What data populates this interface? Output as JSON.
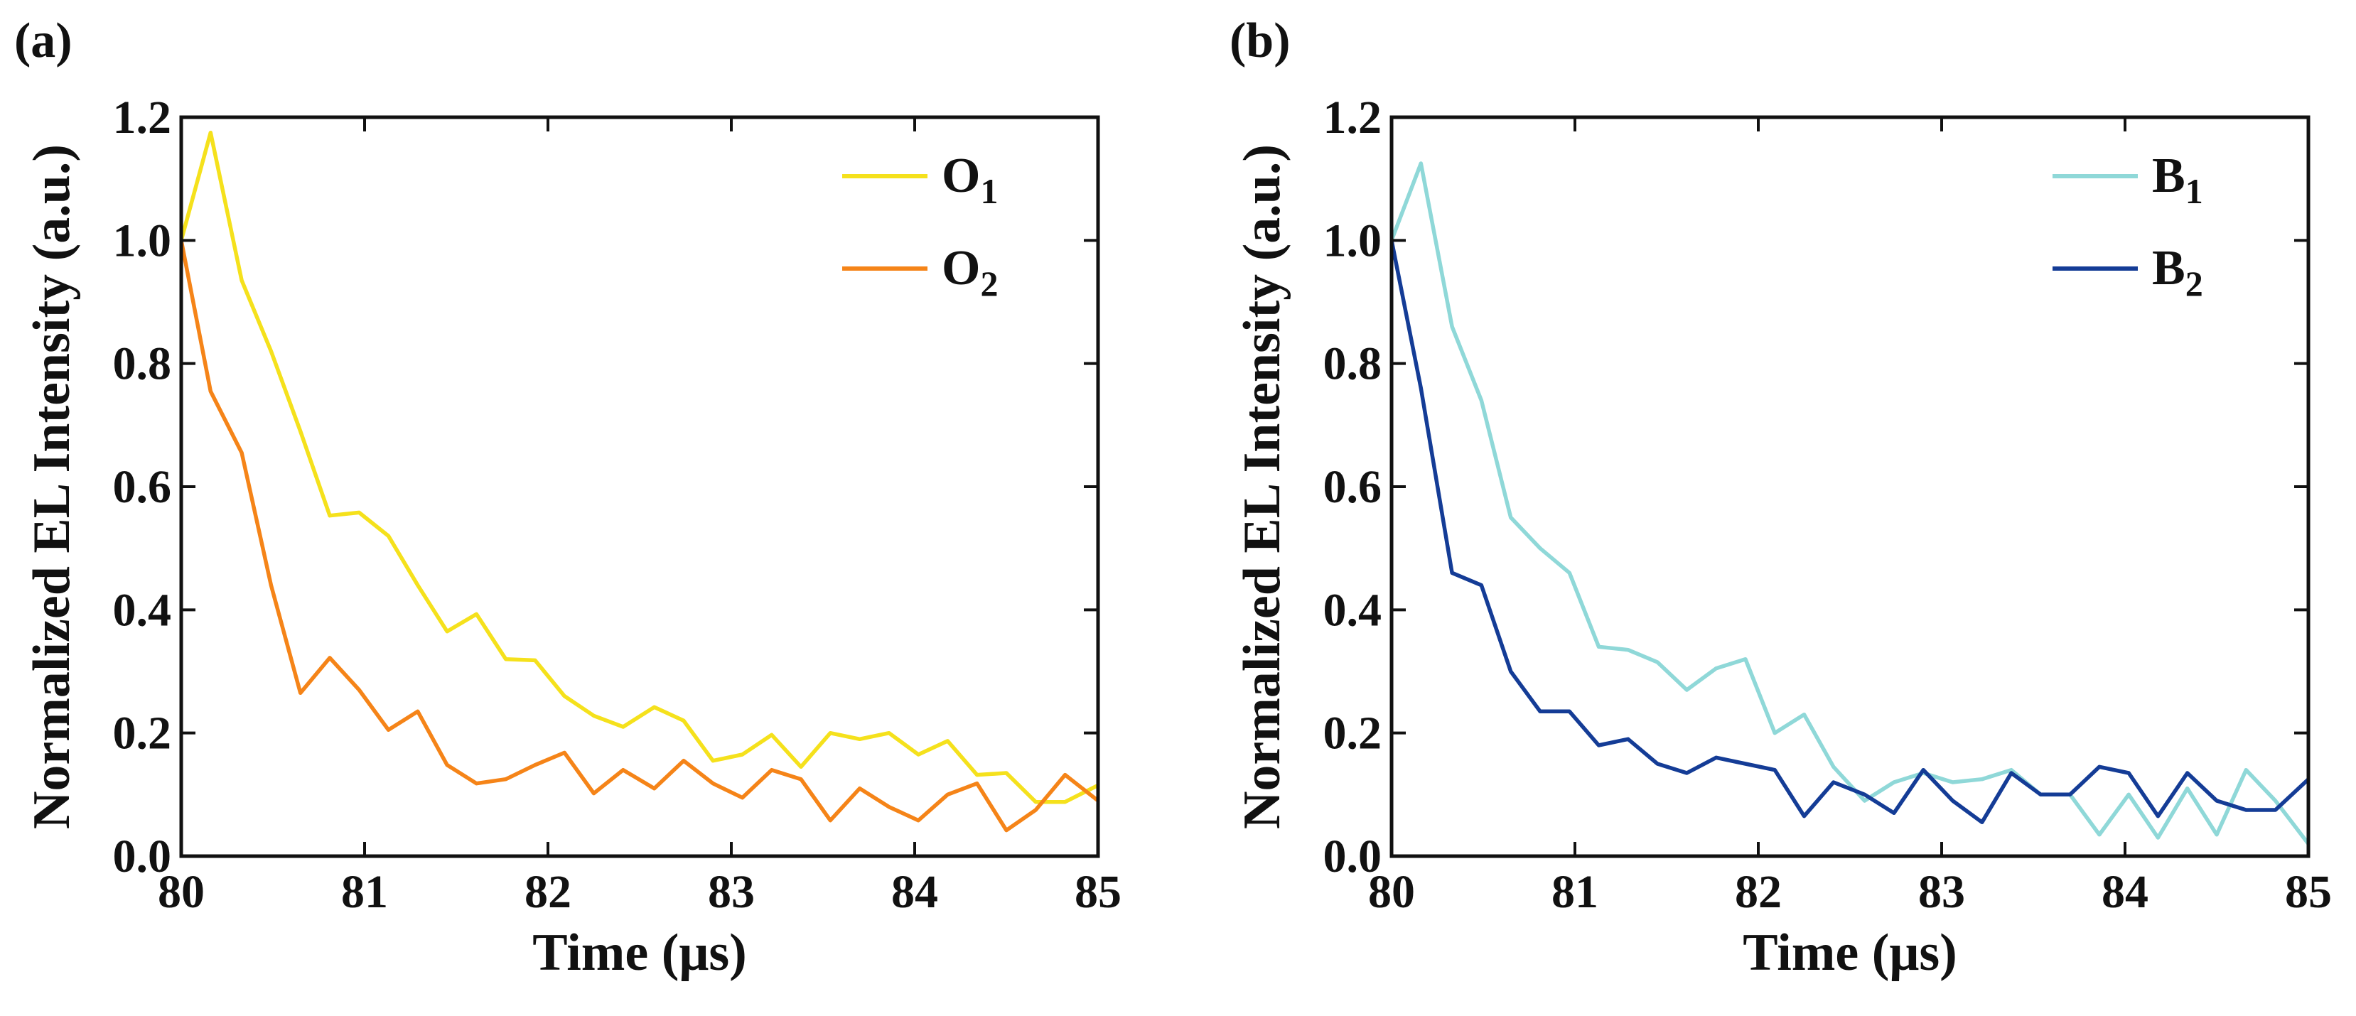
{
  "chart_data": [
    {
      "panel_label": "(a)",
      "type": "line",
      "xlabel": "Time (μs)",
      "ylabel": "Normalized EL Intensity (a.u.)",
      "xlim": [
        80,
        85
      ],
      "ylim": [
        0,
        1.2
      ],
      "xticks": [
        "80",
        "81",
        "82",
        "83",
        "84",
        "85"
      ],
      "yticks": [
        "0.0",
        "0.2",
        "0.4",
        "0.6",
        "0.8",
        "1.0",
        "1.2"
      ],
      "legend_position": "top-right",
      "series": [
        {
          "name": "O",
          "subscript": "1",
          "color": "#f5e11c",
          "x": [
            80.0,
            80.16,
            80.33,
            80.49,
            80.65,
            80.81,
            80.97,
            81.13,
            81.29,
            81.45,
            81.61,
            81.77,
            81.93,
            82.09,
            82.25,
            82.41,
            82.58,
            82.74,
            82.9,
            83.06,
            83.22,
            83.38,
            83.54,
            83.7,
            83.86,
            84.02,
            84.18,
            84.34,
            84.5,
            84.66,
            84.82,
            85.0
          ],
          "y": [
            1.0,
            1.175,
            0.935,
            0.82,
            0.69,
            0.553,
            0.558,
            0.52,
            0.44,
            0.365,
            0.393,
            0.32,
            0.318,
            0.26,
            0.228,
            0.21,
            0.242,
            0.22,
            0.155,
            0.165,
            0.197,
            0.145,
            0.2,
            0.19,
            0.2,
            0.165,
            0.187,
            0.132,
            0.135,
            0.088,
            0.088,
            0.115
          ]
        },
        {
          "name": "O",
          "subscript": "2",
          "color": "#f58418",
          "x": [
            80.0,
            80.16,
            80.33,
            80.49,
            80.65,
            80.81,
            80.97,
            81.13,
            81.29,
            81.45,
            81.61,
            81.77,
            81.93,
            82.09,
            82.25,
            82.41,
            82.58,
            82.74,
            82.9,
            83.06,
            83.22,
            83.38,
            83.54,
            83.7,
            83.86,
            84.02,
            84.18,
            84.34,
            84.5,
            84.66,
            84.82,
            85.0
          ],
          "y": [
            1.0,
            0.755,
            0.655,
            0.44,
            0.265,
            0.322,
            0.27,
            0.205,
            0.235,
            0.148,
            0.118,
            0.125,
            0.148,
            0.168,
            0.102,
            0.14,
            0.11,
            0.155,
            0.118,
            0.095,
            0.14,
            0.125,
            0.058,
            0.11,
            0.08,
            0.058,
            0.1,
            0.118,
            0.042,
            0.075,
            0.132,
            0.09
          ]
        }
      ]
    },
    {
      "panel_label": "(b)",
      "type": "line",
      "xlabel": "Time (μs)",
      "ylabel": "Normalized EL Intensity (a.u.)",
      "xlim": [
        80,
        85
      ],
      "ylim": [
        0,
        1.2
      ],
      "xticks": [
        "80",
        "81",
        "82",
        "83",
        "84",
        "85"
      ],
      "yticks": [
        "0.0",
        "0.2",
        "0.4",
        "0.6",
        "0.8",
        "1.0",
        "1.2"
      ],
      "legend_position": "top-right",
      "series": [
        {
          "name": "B",
          "subscript": "1",
          "color": "#8fd8d8",
          "x": [
            80.0,
            80.16,
            80.33,
            80.49,
            80.65,
            80.81,
            80.97,
            81.13,
            81.29,
            81.45,
            81.61,
            81.77,
            81.93,
            82.09,
            82.25,
            82.41,
            82.58,
            82.74,
            82.9,
            83.06,
            83.22,
            83.38,
            83.54,
            83.7,
            83.86,
            84.02,
            84.18,
            84.34,
            84.5,
            84.66,
            84.82,
            85.0
          ],
          "y": [
            1.0,
            1.125,
            0.86,
            0.74,
            0.55,
            0.5,
            0.46,
            0.34,
            0.335,
            0.315,
            0.27,
            0.305,
            0.32,
            0.2,
            0.23,
            0.145,
            0.09,
            0.12,
            0.135,
            0.12,
            0.125,
            0.14,
            0.1,
            0.1,
            0.035,
            0.1,
            0.03,
            0.11,
            0.035,
            0.14,
            0.09,
            0.02
          ]
        },
        {
          "name": "B",
          "subscript": "2",
          "color": "#143c96",
          "x": [
            80.0,
            80.16,
            80.33,
            80.49,
            80.65,
            80.81,
            80.97,
            81.13,
            81.29,
            81.45,
            81.61,
            81.77,
            81.93,
            82.09,
            82.25,
            82.41,
            82.58,
            82.74,
            82.9,
            83.06,
            83.22,
            83.38,
            83.54,
            83.7,
            83.86,
            84.02,
            84.18,
            84.34,
            84.5,
            84.66,
            84.82,
            85.0
          ],
          "y": [
            1.0,
            0.76,
            0.46,
            0.44,
            0.3,
            0.235,
            0.235,
            0.18,
            0.19,
            0.15,
            0.135,
            0.16,
            0.15,
            0.14,
            0.065,
            0.12,
            0.1,
            0.07,
            0.14,
            0.09,
            0.055,
            0.135,
            0.1,
            0.1,
            0.145,
            0.135,
            0.065,
            0.135,
            0.09,
            0.075,
            0.075,
            0.125
          ]
        }
      ]
    }
  ]
}
